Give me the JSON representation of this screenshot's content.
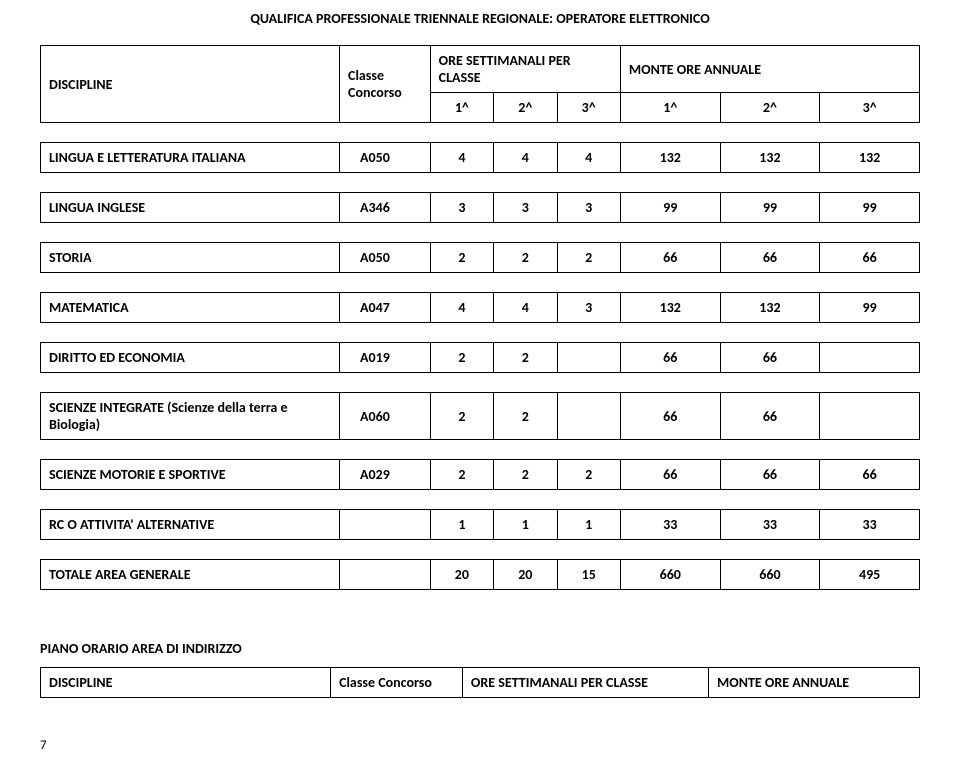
{
  "title": "QUALIFICA PROFESSIONALE TRIENNALE REGIONALE:  OPERATORE  ELETTRONICO",
  "headers": {
    "discipline": "DISCIPLINE",
    "classe": "Classe",
    "concorso": "Concorso",
    "weekly": "ORE SETTIMANALI PER CLASSE",
    "annual": "MONTE ORE ANNUALE",
    "c1": "1^",
    "c2": "2^",
    "c3": "3^"
  },
  "rows": [
    {
      "label": "LINGUA E LETTERATURA ITALIANA",
      "code": "A050",
      "w1": "4",
      "w2": "4",
      "w3": "4",
      "a1": "132",
      "a2": "132",
      "a3": "132"
    },
    {
      "label": "LINGUA INGLESE",
      "code": "A346",
      "w1": "3",
      "w2": "3",
      "w3": "3",
      "a1": "99",
      "a2": "99",
      "a3": "99"
    },
    {
      "label": "STORIA",
      "code": "A050",
      "w1": "2",
      "w2": "2",
      "w3": "2",
      "a1": "66",
      "a2": "66",
      "a3": "66"
    },
    {
      "label": "MATEMATICA",
      "code": "A047",
      "w1": "4",
      "w2": "4",
      "w3": "3",
      "a1": "132",
      "a2": "132",
      "a3": "99"
    },
    {
      "label": "DIRITTO ED ECONOMIA",
      "code": "A019",
      "w1": "2",
      "w2": "2",
      "w3": "",
      "a1": "66",
      "a2": "66",
      "a3": ""
    },
    {
      "label": "SCIENZE INTEGRATE (Scienze della terra e Biologia)",
      "code": "A060",
      "w1": "2",
      "w2": "2",
      "w3": "",
      "a1": "66",
      "a2": "66",
      "a3": ""
    },
    {
      "label": "SCIENZE MOTORIE E SPORTIVE",
      "code": "A029",
      "w1": "2",
      "w2": "2",
      "w3": "2",
      "a1": "66",
      "a2": "66",
      "a3": "66"
    },
    {
      "label": "RC O ATTIVITA' ALTERNATIVE",
      "code": "",
      "w1": "1",
      "w2": "1",
      "w3": "1",
      "a1": "33",
      "a2": "33",
      "a3": "33"
    }
  ],
  "total": {
    "label": "TOTALE AREA GENERALE",
    "code": "",
    "w1": "20",
    "w2": "20",
    "w3": "15",
    "a1": "660",
    "a2": "660",
    "a3": "495"
  },
  "section2": {
    "title": "PIANO ORARIO AREA DI INDIRIZZO",
    "discipline": "DISCIPLINE",
    "classe_concorso": "Classe Concorso",
    "weekly": "ORE SETTIMANALI PER CLASSE",
    "annual": "MONTE ORE ANNUALE"
  },
  "page_num": "7",
  "colwidths": {
    "label": "33%",
    "code": "10%",
    "w": "7%",
    "a": "11%"
  }
}
